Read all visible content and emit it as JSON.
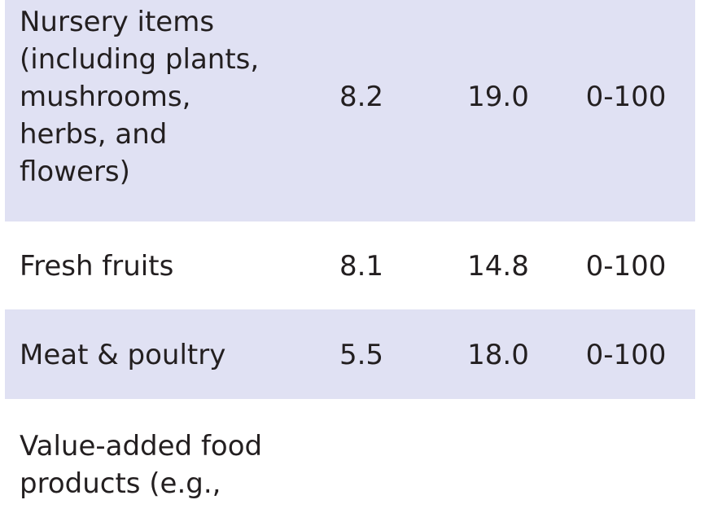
{
  "table": {
    "rows": [
      {
        "label": "Nursery items\n(including plants,\nmushrooms,\nherbs, and\nflowers)",
        "v1": "8.2",
        "v2": "19.0",
        "v3": "0-100",
        "shaded": true
      },
      {
        "label": "Fresh fruits",
        "v1": "8.1",
        "v2": "14.8",
        "v3": "0-100",
        "shaded": false
      },
      {
        "label": "Meat & poultry",
        "v1": "5.5",
        "v2": "18.0",
        "v3": "0-100",
        "shaded": true
      },
      {
        "label": "Value-added food\nproducts (e.g.,",
        "v1": "",
        "v2": "",
        "v3": "",
        "shaded": false
      }
    ]
  }
}
